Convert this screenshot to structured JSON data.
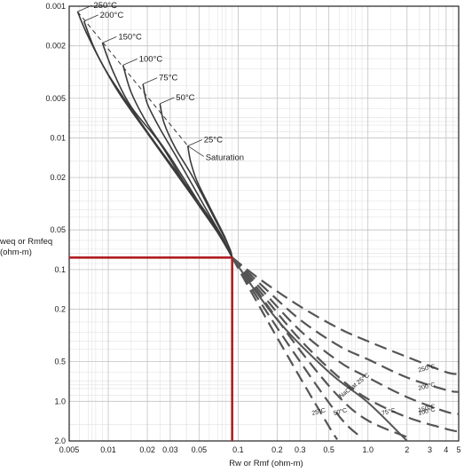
{
  "chart_data": {
    "type": "line",
    "title": "",
    "xlabel": "Rw or Rmf (ohm-m)",
    "ylabel": "Rweq or Rmfeq (ohm-m)",
    "ylabel_lines": [
      "weq or Rmfeq",
      "(ohm-m)"
    ],
    "x_scale": "log",
    "y_scale": "log",
    "y_inverted": true,
    "xlim": [
      0.005,
      5
    ],
    "ylim": [
      0.001,
      2.0
    ],
    "grid": true,
    "x_ticks": [
      {
        "v": 0.005,
        "label": "0.005"
      },
      {
        "v": 0.01,
        "label": "0.01"
      },
      {
        "v": 0.02,
        "label": "0.02"
      },
      {
        "v": 0.03,
        "label": "0.03"
      },
      {
        "v": 0.05,
        "label": "0.05"
      },
      {
        "v": 0.1,
        "label": "0.1"
      },
      {
        "v": 0.2,
        "label": "0.2"
      },
      {
        "v": 0.3,
        "label": "0.3"
      },
      {
        "v": 0.5,
        "label": "0.5"
      },
      {
        "v": 1.0,
        "label": "1.0"
      },
      {
        "v": 2,
        "label": "2"
      },
      {
        "v": 3,
        "label": "3"
      },
      {
        "v": 4,
        "label": "4"
      },
      {
        "v": 5,
        "label": "5"
      }
    ],
    "y_ticks": [
      {
        "v": 0.001,
        "label": "0.001"
      },
      {
        "v": 0.002,
        "label": "0.002"
      },
      {
        "v": 0.005,
        "label": "0.005"
      },
      {
        "v": 0.01,
        "label": "0.01"
      },
      {
        "v": 0.02,
        "label": "0.02"
      },
      {
        "v": 0.05,
        "label": "0.05"
      },
      {
        "v": 0.1,
        "label": "0.1"
      },
      {
        "v": 0.2,
        "label": "0.2"
      },
      {
        "v": 0.5,
        "label": "0.5"
      },
      {
        "v": 1.0,
        "label": "1.0"
      },
      {
        "v": 2.0,
        "label": "2.0"
      }
    ],
    "saturation_line": {
      "name": "Saturation",
      "points": [
        [
          0.0058,
          0.0011
        ],
        [
          0.041,
          0.0115
        ]
      ]
    },
    "series": [
      {
        "name": "250°C",
        "points": [
          [
            0.0058,
            0.0011
          ],
          [
            0.007,
            0.0017
          ],
          [
            0.01,
            0.0033
          ],
          [
            0.02,
            0.009
          ],
          [
            0.04,
            0.023
          ],
          [
            0.07,
            0.05
          ],
          [
            0.09,
            0.081
          ],
          [
            0.15,
            0.12
          ],
          [
            0.3,
            0.19
          ],
          [
            0.6,
            0.28
          ],
          [
            1.0,
            0.35
          ],
          [
            2.0,
            0.46
          ],
          [
            4.0,
            0.6
          ],
          [
            5.0,
            0.62
          ]
        ]
      },
      {
        "name": "200°C",
        "points": [
          [
            0.0065,
            0.0013
          ],
          [
            0.008,
            0.0022
          ],
          [
            0.012,
            0.0045
          ],
          [
            0.02,
            0.0092
          ],
          [
            0.04,
            0.024
          ],
          [
            0.07,
            0.052
          ],
          [
            0.09,
            0.081
          ],
          [
            0.15,
            0.13
          ],
          [
            0.3,
            0.24
          ],
          [
            0.6,
            0.38
          ],
          [
            1.0,
            0.48
          ],
          [
            2.0,
            0.66
          ],
          [
            4.0,
            0.82
          ],
          [
            5.0,
            0.85
          ]
        ]
      },
      {
        "name": "150°C",
        "points": [
          [
            0.009,
            0.0019
          ],
          [
            0.011,
            0.0032
          ],
          [
            0.015,
            0.0058
          ],
          [
            0.025,
            0.011
          ],
          [
            0.045,
            0.028
          ],
          [
            0.07,
            0.053
          ],
          [
            0.09,
            0.081
          ],
          [
            0.15,
            0.14
          ],
          [
            0.3,
            0.29
          ],
          [
            0.6,
            0.5
          ],
          [
            1.0,
            0.66
          ],
          [
            2.0,
            0.93
          ],
          [
            4.0,
            1.2
          ],
          [
            5.0,
            1.25
          ]
        ]
      },
      {
        "name": "100°C",
        "points": [
          [
            0.013,
            0.0028
          ],
          [
            0.015,
            0.0045
          ],
          [
            0.02,
            0.0078
          ],
          [
            0.03,
            0.014
          ],
          [
            0.05,
            0.031
          ],
          [
            0.075,
            0.057
          ],
          [
            0.09,
            0.081
          ],
          [
            0.15,
            0.15
          ],
          [
            0.3,
            0.34
          ],
          [
            0.6,
            0.66
          ],
          [
            1.0,
            0.96
          ],
          [
            2.0,
            1.32
          ],
          [
            4.0,
            1.62
          ],
          [
            5.0,
            1.7
          ]
        ]
      },
      {
        "name": "75°C",
        "points": [
          [
            0.0185,
            0.0039
          ],
          [
            0.02,
            0.0055
          ],
          [
            0.025,
            0.0085
          ],
          [
            0.035,
            0.015
          ],
          [
            0.055,
            0.033
          ],
          [
            0.078,
            0.06
          ],
          [
            0.09,
            0.081
          ],
          [
            0.15,
            0.16
          ],
          [
            0.3,
            0.41
          ],
          [
            0.6,
            0.93
          ],
          [
            1.0,
            1.4
          ],
          [
            2.0,
            1.87
          ]
        ]
      },
      {
        "name": "50°C",
        "points": [
          [
            0.025,
            0.0055
          ],
          [
            0.027,
            0.0078
          ],
          [
            0.033,
            0.012
          ],
          [
            0.045,
            0.02
          ],
          [
            0.065,
            0.04
          ],
          [
            0.085,
            0.067
          ],
          [
            0.09,
            0.081
          ],
          [
            0.15,
            0.18
          ],
          [
            0.3,
            0.5
          ],
          [
            0.6,
            1.3
          ],
          [
            0.85,
            1.82
          ]
        ]
      },
      {
        "name": "25°C",
        "points": [
          [
            0.041,
            0.0115
          ],
          [
            0.043,
            0.015
          ],
          [
            0.048,
            0.021
          ],
          [
            0.06,
            0.033
          ],
          [
            0.08,
            0.058
          ],
          [
            0.09,
            0.081
          ],
          [
            0.15,
            0.2
          ],
          [
            0.3,
            0.66
          ],
          [
            0.5,
            1.55
          ],
          [
            0.58,
            1.95
          ]
        ]
      },
      {
        "name": "Na Cl at 25°C",
        "points": [
          [
            0.09,
            0.081
          ],
          [
            0.2,
            0.24
          ],
          [
            0.5,
            0.6
          ],
          [
            1.0,
            1.02
          ],
          [
            2.0,
            2.0
          ]
        ]
      }
    ],
    "right_labels": [
      "250°C",
      "200°C",
      "150°C",
      "100°C",
      "75°C",
      "50°C",
      "25°C"
    ],
    "diagonal_label": "NaCl at 25°C",
    "highlight": {
      "x": 0.09,
      "y": 0.081,
      "color": "#b01e23"
    }
  }
}
